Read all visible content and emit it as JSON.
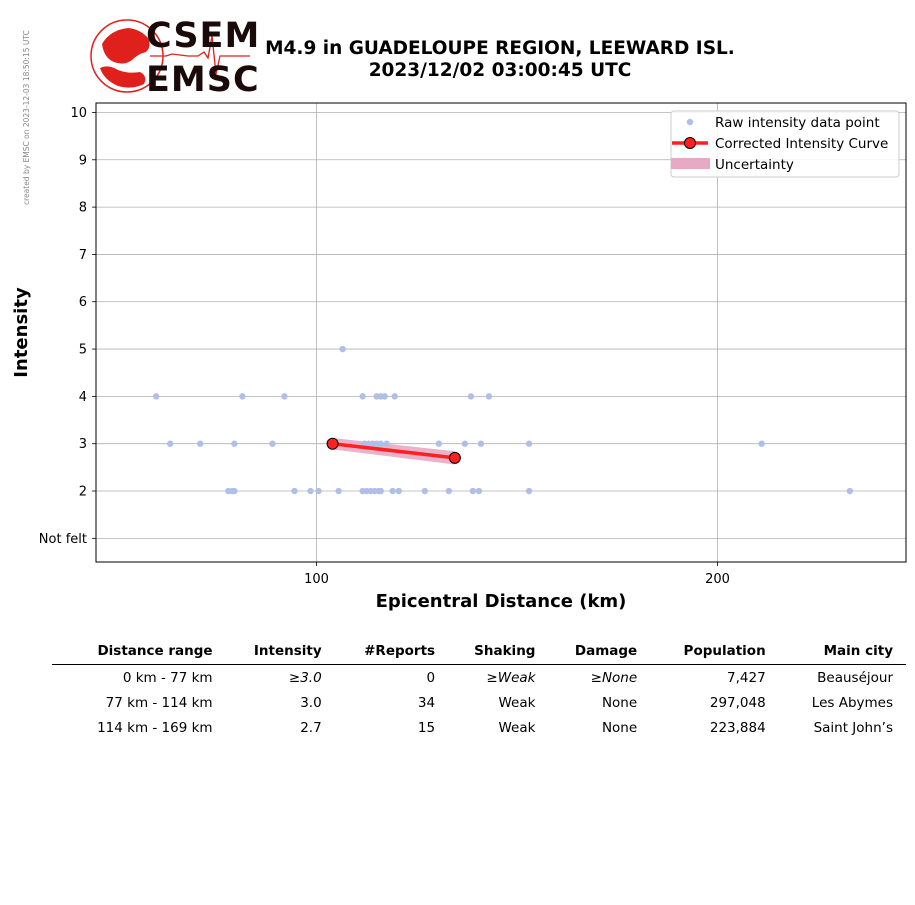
{
  "watermark": "created by EMSC on 2023-12-03 18:50:15 UTC",
  "logo": {
    "line1": "CSEM",
    "line2": "EMSC",
    "color": "#e0201d"
  },
  "title": {
    "line1": "M4.9 in GUADELOUPE REGION, LEEWARD ISL.",
    "line2": "2023/12/02 03:00:45 UTC"
  },
  "chart_data": {
    "type": "scatter",
    "xlabel": "Epicentral Distance (km)",
    "ylabel": "Intensity",
    "xlim": [
      45,
      247
    ],
    "ylim": [
      0.5,
      10.2
    ],
    "xticks": [
      100,
      200
    ],
    "yticks": [
      {
        "v": 1,
        "label": "Not felt"
      },
      {
        "v": 2,
        "label": "2"
      },
      {
        "v": 3,
        "label": "3"
      },
      {
        "v": 4,
        "label": "4"
      },
      {
        "v": 5,
        "label": "5"
      },
      {
        "v": 6,
        "label": "6"
      },
      {
        "v": 7,
        "label": "7"
      },
      {
        "v": 8,
        "label": "8"
      },
      {
        "v": 9,
        "label": "9"
      },
      {
        "v": 10,
        "label": "10"
      }
    ],
    "grid": true,
    "legend_position": "top-right",
    "legend": [
      "Raw intensity data point",
      "Corrected Intensity Curve",
      "Uncertainty"
    ],
    "colors": {
      "raw": "#b0bfe8",
      "curve": "#ff2020",
      "uncertainty": "#e8a9c4",
      "grid": "#b0b0b0"
    },
    "raw_points": [
      [
        106.5,
        5
      ],
      [
        60,
        4
      ],
      [
        81.5,
        4
      ],
      [
        92,
        4
      ],
      [
        111.5,
        4
      ],
      [
        115,
        4
      ],
      [
        116,
        4
      ],
      [
        117,
        4
      ],
      [
        119.5,
        4
      ],
      [
        138.5,
        4
      ],
      [
        143,
        4
      ],
      [
        63.5,
        3
      ],
      [
        71,
        3
      ],
      [
        79.5,
        3
      ],
      [
        89,
        3
      ],
      [
        105,
        3
      ],
      [
        112,
        3
      ],
      [
        113,
        3
      ],
      [
        114,
        3
      ],
      [
        115,
        3
      ],
      [
        116,
        3
      ],
      [
        117.5,
        3
      ],
      [
        130.5,
        3
      ],
      [
        137,
        3
      ],
      [
        141,
        3
      ],
      [
        153,
        3
      ],
      [
        211,
        3
      ],
      [
        78,
        2
      ],
      [
        79,
        2
      ],
      [
        79.5,
        2
      ],
      [
        94.5,
        2
      ],
      [
        98.5,
        2
      ],
      [
        100.5,
        2
      ],
      [
        105.5,
        2
      ],
      [
        111.5,
        2
      ],
      [
        112.5,
        2
      ],
      [
        113.5,
        2
      ],
      [
        114.5,
        2
      ],
      [
        115.5,
        2
      ],
      [
        116,
        2
      ],
      [
        119,
        2
      ],
      [
        120.5,
        2
      ],
      [
        127,
        2
      ],
      [
        133,
        2
      ],
      [
        139,
        2
      ],
      [
        140.5,
        2
      ],
      [
        153,
        2
      ],
      [
        233,
        2
      ]
    ],
    "curve": {
      "x": [
        104,
        134.5
      ],
      "y": [
        3.0,
        2.7
      ]
    },
    "uncertainty": {
      "x": [
        104,
        134.5
      ],
      "upper": [
        3.12,
        2.84
      ],
      "lower": [
        2.88,
        2.56
      ]
    }
  },
  "table": {
    "headers": [
      "Distance range",
      "Intensity",
      "#Reports",
      "Shaking",
      "Damage",
      "Population",
      "Main city"
    ],
    "rows": [
      [
        "0 km -   77 km",
        "≥3.0",
        "0",
        "≥Weak",
        "≥None",
        "7,427",
        "Beauséjour"
      ],
      [
        "77 km -  114 km",
        "3.0",
        "34",
        "Weak",
        "None",
        "297,048",
        "Les Abymes"
      ],
      [
        "114 km -  169 km",
        "2.7",
        "15",
        "Weak",
        "None",
        "223,884",
        "Saint John’s"
      ]
    ]
  }
}
